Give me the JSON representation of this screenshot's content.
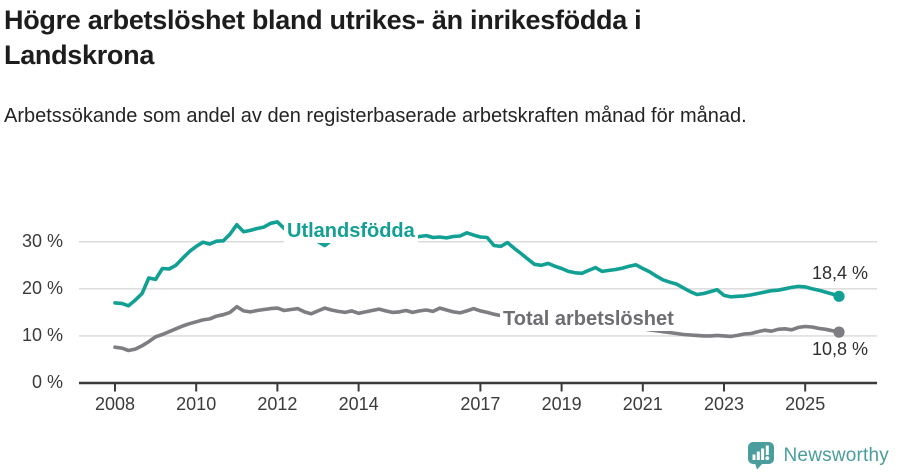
{
  "header": {
    "title": "Högre arbetslöshet bland utrikes- än inrikesfödda i Landskrona",
    "subtitle": "Arbetssökande som andel av den registerbaserade arbetskraften månad för månad."
  },
  "chart_data": {
    "type": "line",
    "title": "Högre arbetslöshet bland utrikes- än inrikesfödda i Landskrona",
    "unit": "%",
    "x_start": "2008-01",
    "x_step_months": 2,
    "x_end": "2025-11",
    "x_ticks": [
      "2008",
      "2010",
      "2012",
      "2014",
      "2017",
      "2019",
      "2021",
      "2023",
      "2025"
    ],
    "x_tick_years": [
      2008,
      2010,
      2012,
      2014,
      2017,
      2019,
      2021,
      2023,
      2025
    ],
    "y_ticks": [
      "0 %",
      "10 %",
      "20 %",
      "30 %"
    ],
    "y_tick_values": [
      0,
      10,
      20,
      30
    ],
    "ylim": [
      0,
      35.5
    ],
    "grid": "horizontal",
    "legend_position": "inline-labels",
    "series": [
      {
        "name": "Utlandsfödda",
        "color": "#12a095",
        "label_color": "#12a095",
        "end_label": "18,4 %",
        "end_value": 18.4,
        "values": [
          17.0,
          16.9,
          16.4,
          17.6,
          19.0,
          22.3,
          22.0,
          24.3,
          24.2,
          25.0,
          26.5,
          27.9,
          29.0,
          29.9,
          29.5,
          30.1,
          30.2,
          31.6,
          33.6,
          32.1,
          32.4,
          32.8,
          33.1,
          33.9,
          34.2,
          32.8,
          32.3,
          32.6,
          31.4,
          30.7,
          30.0,
          29.2,
          30.3,
          30.9,
          30.5,
          30.8,
          31.1,
          30.7,
          31.0,
          31.3,
          30.8,
          30.6,
          30.9,
          31.2,
          30.8,
          31.1,
          31.3,
          30.9,
          31.0,
          30.8,
          31.1,
          31.2,
          31.9,
          31.4,
          31.0,
          30.9,
          29.2,
          29.0,
          29.8,
          28.6,
          27.5,
          26.3,
          25.2,
          25.0,
          25.4,
          24.8,
          24.3,
          23.7,
          23.4,
          23.3,
          23.9,
          24.5,
          23.7,
          23.9,
          24.1,
          24.4,
          24.8,
          25.1,
          24.3,
          23.6,
          22.7,
          21.9,
          21.4,
          21.0,
          20.2,
          19.4,
          18.8,
          19.0,
          19.4,
          19.8,
          18.6,
          18.3,
          18.4,
          18.5,
          18.7,
          19.0,
          19.3,
          19.6,
          19.7,
          20.0,
          20.3,
          20.5,
          20.4,
          20.0,
          19.7,
          19.3,
          18.9,
          18.4
        ]
      },
      {
        "name": "Total arbetslöshet",
        "color": "#7d7d82",
        "label_color": "#6d6d72",
        "end_label": "10,8 %",
        "end_value": 10.8,
        "values": [
          7.6,
          7.4,
          6.9,
          7.2,
          7.9,
          8.8,
          9.8,
          10.3,
          10.9,
          11.5,
          12.1,
          12.6,
          13.0,
          13.4,
          13.6,
          14.2,
          14.5,
          15.0,
          16.2,
          15.3,
          15.1,
          15.4,
          15.6,
          15.8,
          15.9,
          15.4,
          15.6,
          15.8,
          15.1,
          14.7,
          15.3,
          15.9,
          15.5,
          15.2,
          15.0,
          15.3,
          14.8,
          15.1,
          15.4,
          15.7,
          15.3,
          15.0,
          15.1,
          15.4,
          15.0,
          15.3,
          15.5,
          15.2,
          15.9,
          15.5,
          15.1,
          14.9,
          15.3,
          15.8,
          15.3,
          15.0,
          14.6,
          14.3,
          14.4,
          14.0,
          13.7,
          13.4,
          13.1,
          12.9,
          12.8,
          12.5,
          12.3,
          12.1,
          11.9,
          11.8,
          11.9,
          11.7,
          11.6,
          11.7,
          11.9,
          12.0,
          11.9,
          11.7,
          11.5,
          11.3,
          11.1,
          10.9,
          10.7,
          10.5,
          10.3,
          10.2,
          10.1,
          10.0,
          10.0,
          10.1,
          10.0,
          9.9,
          10.1,
          10.4,
          10.5,
          10.9,
          11.2,
          11.0,
          11.4,
          11.5,
          11.3,
          11.8,
          12.0,
          11.9,
          11.6,
          11.4,
          11.1,
          10.8
        ]
      }
    ],
    "axis_color": "#3a3a3a",
    "grid_color": "#d9d9d9"
  },
  "footer": {
    "brand": "Newsworthy",
    "logo_icon": "bar-chart-speech-bubble-icon",
    "brand_color": "#4a9d9c"
  }
}
